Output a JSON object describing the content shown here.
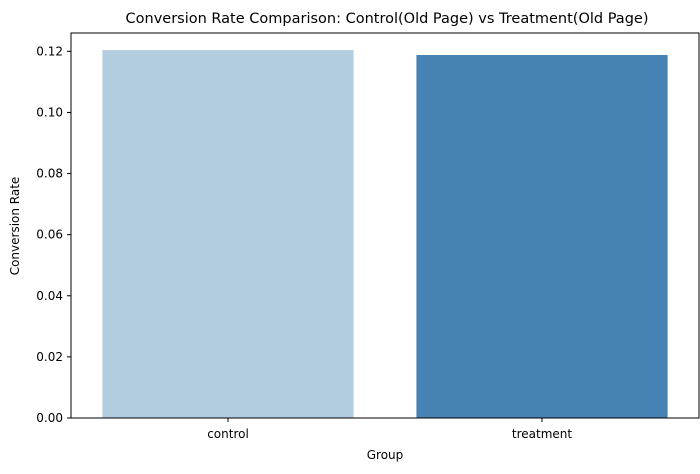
{
  "chart_data": {
    "type": "bar",
    "title": "Conversion Rate Comparison: Control(Old Page) vs Treatment(Old Page)",
    "xlabel": "Group",
    "ylabel": "Conversion Rate",
    "categories": [
      "control",
      "treatment"
    ],
    "values": [
      0.1204,
      0.1188
    ],
    "ylim": [
      0,
      0.126
    ],
    "yticks": [
      0.0,
      0.02,
      0.04,
      0.06,
      0.08,
      0.1,
      0.12
    ],
    "ytick_labels": [
      "0.00",
      "0.02",
      "0.04",
      "0.06",
      "0.08",
      "0.10",
      "0.12"
    ],
    "colors": [
      "#b3cde0",
      "#4682b4"
    ],
    "grid": false,
    "legend": "none"
  }
}
